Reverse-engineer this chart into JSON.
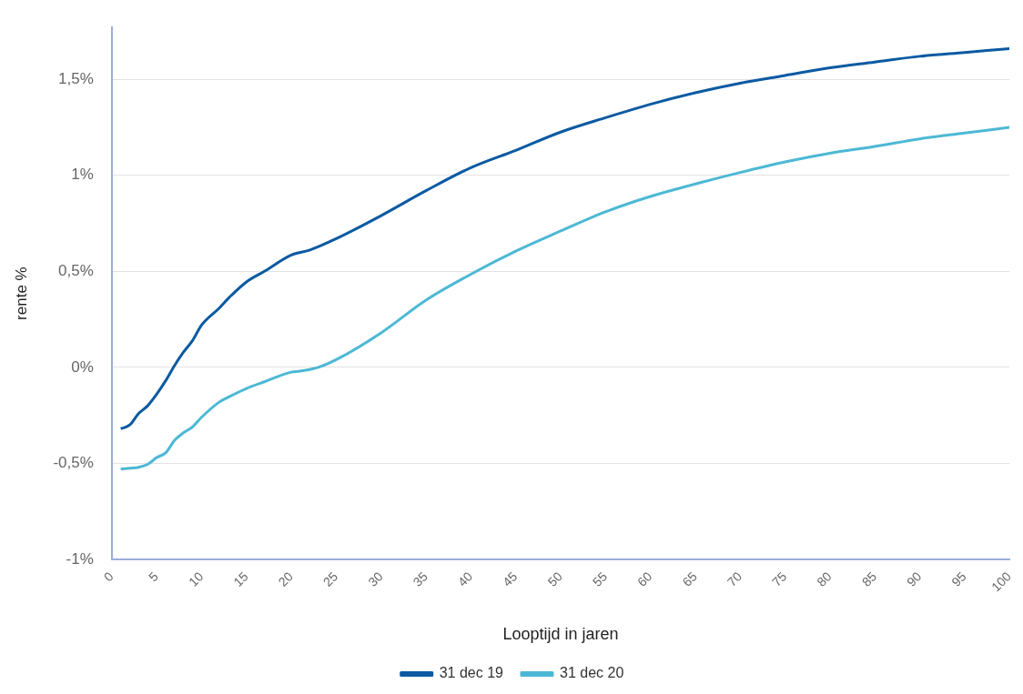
{
  "chart_data": {
    "type": "line",
    "xlabel": "Looptijd in jaren",
    "ylabel": "rente %",
    "x": [
      1,
      2,
      3,
      4,
      5,
      6,
      7,
      8,
      9,
      10,
      12,
      13,
      15,
      17,
      20,
      22,
      25,
      30,
      35,
      40,
      45,
      50,
      55,
      60,
      65,
      70,
      75,
      80,
      85,
      90,
      95,
      100
    ],
    "series": [
      {
        "name": "31 dec 19",
        "color": "#0b5aa2",
        "values": [
          -0.32,
          -0.3,
          -0.24,
          -0.2,
          -0.14,
          -0.07,
          0.01,
          0.08,
          0.14,
          0.22,
          0.31,
          0.36,
          0.445,
          0.5,
          0.585,
          0.61,
          0.67,
          0.79,
          0.92,
          1.04,
          1.13,
          1.225,
          1.3,
          1.37,
          1.43,
          1.48,
          1.52,
          1.56,
          1.59,
          1.62,
          1.64,
          1.66
        ]
      },
      {
        "name": "31 dec 20",
        "color": "#4cb8d5",
        "x": [
          1,
          2,
          3,
          4,
          5,
          6,
          7,
          8,
          9,
          10,
          12,
          13,
          15,
          17,
          20,
          21,
          23,
          25,
          30,
          35,
          40,
          45,
          50,
          55,
          60,
          65,
          70,
          75,
          80,
          85,
          90,
          95,
          100
        ],
        "values": [
          -0.53,
          -0.525,
          -0.52,
          -0.505,
          -0.47,
          -0.445,
          -0.38,
          -0.34,
          -0.31,
          -0.26,
          -0.18,
          -0.155,
          -0.11,
          -0.075,
          -0.025,
          -0.02,
          0.0,
          0.04,
          0.18,
          0.35,
          0.485,
          0.605,
          0.71,
          0.81,
          0.89,
          0.955,
          1.015,
          1.07,
          1.115,
          1.15,
          1.19,
          1.22,
          1.25
        ]
      }
    ],
    "xlim": [
      0,
      100
    ],
    "xticks": [
      0,
      5,
      10,
      15,
      20,
      25,
      30,
      35,
      40,
      45,
      50,
      55,
      60,
      65,
      70,
      75,
      80,
      85,
      90,
      95,
      100
    ],
    "ylim": [
      -1,
      1.77
    ],
    "yticks": [
      {
        "value": -1,
        "label": "-1%"
      },
      {
        "value": -0.5,
        "label": "-0,5%"
      },
      {
        "value": 0,
        "label": "0%"
      },
      {
        "value": 0.5,
        "label": "0,5%"
      },
      {
        "value": 1,
        "label": "1%"
      },
      {
        "value": 1.5,
        "label": "1,5%"
      }
    ],
    "grid": "y",
    "legend": "bottom",
    "marker": "none",
    "line_style": "solid"
  }
}
